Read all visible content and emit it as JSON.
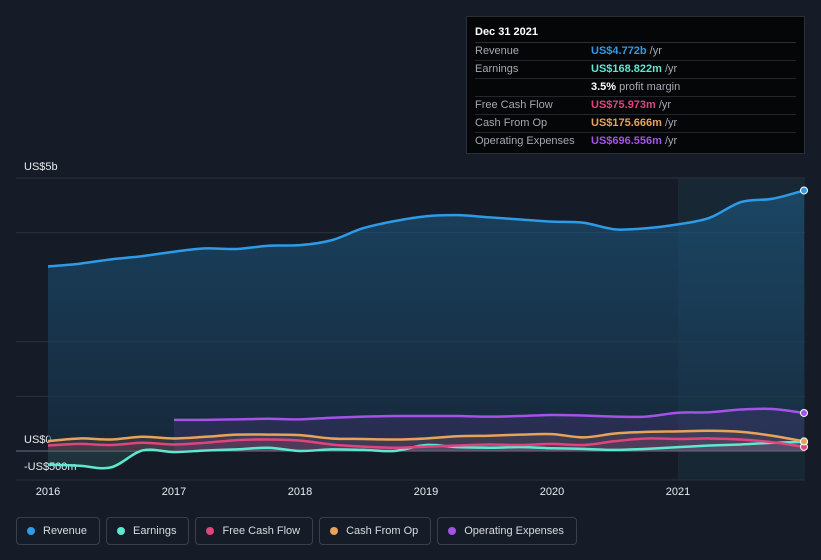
{
  "tooltip": {
    "date": "Dec 31 2021",
    "rows": [
      {
        "label": "Revenue",
        "value": "US$4.772b",
        "unit": "/yr",
        "color": "#2d9be6"
      },
      {
        "label": "Earnings",
        "value": "US$168.822m",
        "unit": "/yr",
        "color": "#5de8d0"
      },
      {
        "label": "",
        "value": "3.5%",
        "unit": "profit margin",
        "color": "#ffffff"
      },
      {
        "label": "Free Cash Flow",
        "value": "US$75.973m",
        "unit": "/yr",
        "color": "#e0447f"
      },
      {
        "label": "Cash From Op",
        "value": "US$175.666m",
        "unit": "/yr",
        "color": "#e8a35a"
      },
      {
        "label": "Operating Expenses",
        "value": "US$696.556m",
        "unit": "/yr",
        "color": "#a452e8"
      }
    ]
  },
  "legend": [
    {
      "label": "Revenue",
      "color": "#2d9be6"
    },
    {
      "label": "Earnings",
      "color": "#5de8d0"
    },
    {
      "label": "Free Cash Flow",
      "color": "#e0447f"
    },
    {
      "label": "Cash From Op",
      "color": "#e8a35a"
    },
    {
      "label": "Operating Expenses",
      "color": "#a452e8"
    }
  ],
  "chart_data": {
    "type": "area",
    "x_tick_labels": [
      "2016",
      "2017",
      "2018",
      "2019",
      "2020",
      "2021"
    ],
    "y_tick_labels": [
      "US$5b",
      "US$0",
      "-US$500m"
    ],
    "ylim": [
      -500,
      5000
    ],
    "y_unit": "US$ millions",
    "highlight_from": 2021.0,
    "series": [
      {
        "name": "Revenue",
        "color": "#2d9be6",
        "x": [
          2016.0,
          2016.25,
          2016.5,
          2016.75,
          2017.0,
          2017.25,
          2017.5,
          2017.75,
          2018.0,
          2018.25,
          2018.5,
          2018.75,
          2019.0,
          2019.25,
          2019.5,
          2019.75,
          2020.0,
          2020.25,
          2020.5,
          2020.75,
          2021.0,
          2021.25,
          2021.5,
          2021.75,
          2022.0
        ],
        "y": [
          3380,
          3430,
          3510,
          3570,
          3650,
          3710,
          3700,
          3760,
          3770,
          3860,
          4080,
          4210,
          4300,
          4320,
          4280,
          4240,
          4200,
          4180,
          4060,
          4080,
          4150,
          4270,
          4560,
          4620,
          4772
        ]
      },
      {
        "name": "Earnings",
        "color": "#5de8d0",
        "x": [
          2016.0,
          2016.25,
          2016.5,
          2016.75,
          2017.0,
          2017.25,
          2017.5,
          2017.75,
          2018.0,
          2018.25,
          2018.5,
          2018.75,
          2019.0,
          2019.25,
          2019.5,
          2019.75,
          2020.0,
          2020.25,
          2020.5,
          2020.75,
          2021.0,
          2021.25,
          2021.5,
          2021.75,
          2022.0
        ],
        "y": [
          -250,
          -270,
          -300,
          10,
          -20,
          10,
          30,
          60,
          0,
          30,
          20,
          0,
          110,
          70,
          60,
          70,
          50,
          40,
          20,
          40,
          70,
          100,
          120,
          150,
          168.822
        ]
      },
      {
        "name": "Free Cash Flow",
        "color": "#e0447f",
        "x": [
          2016.0,
          2016.25,
          2016.5,
          2016.75,
          2017.0,
          2017.25,
          2017.5,
          2017.75,
          2018.0,
          2018.25,
          2018.5,
          2018.75,
          2019.0,
          2019.25,
          2019.5,
          2019.75,
          2020.0,
          2020.25,
          2020.5,
          2020.75,
          2021.0,
          2021.25,
          2021.5,
          2021.75,
          2022.0
        ],
        "y": [
          100,
          130,
          110,
          150,
          120,
          150,
          200,
          210,
          190,
          120,
          80,
          60,
          80,
          100,
          120,
          110,
          130,
          110,
          180,
          230,
          220,
          230,
          210,
          160,
          75.973
        ]
      },
      {
        "name": "Cash From Op",
        "color": "#e8a35a",
        "x": [
          2016.0,
          2016.25,
          2016.5,
          2016.75,
          2017.0,
          2017.25,
          2017.5,
          2017.75,
          2018.0,
          2018.25,
          2018.5,
          2018.75,
          2019.0,
          2019.25,
          2019.5,
          2019.75,
          2020.0,
          2020.25,
          2020.5,
          2020.75,
          2021.0,
          2021.25,
          2021.5,
          2021.75,
          2022.0
        ],
        "y": [
          180,
          230,
          210,
          260,
          230,
          260,
          300,
          300,
          290,
          230,
          220,
          210,
          230,
          270,
          280,
          300,
          310,
          250,
          320,
          350,
          360,
          370,
          350,
          280,
          175.666
        ]
      },
      {
        "name": "Operating Expenses",
        "color": "#a452e8",
        "x": [
          2017.0,
          2017.25,
          2017.5,
          2017.75,
          2018.0,
          2018.25,
          2018.5,
          2018.75,
          2019.0,
          2019.25,
          2019.5,
          2019.75,
          2020.0,
          2020.25,
          2020.5,
          2020.75,
          2021.0,
          2021.25,
          2021.5,
          2021.75,
          2022.0
        ],
        "y": [
          570,
          570,
          580,
          590,
          580,
          610,
          630,
          640,
          640,
          640,
          630,
          640,
          660,
          650,
          630,
          630,
          700,
          710,
          760,
          770,
          696.556
        ]
      }
    ]
  }
}
